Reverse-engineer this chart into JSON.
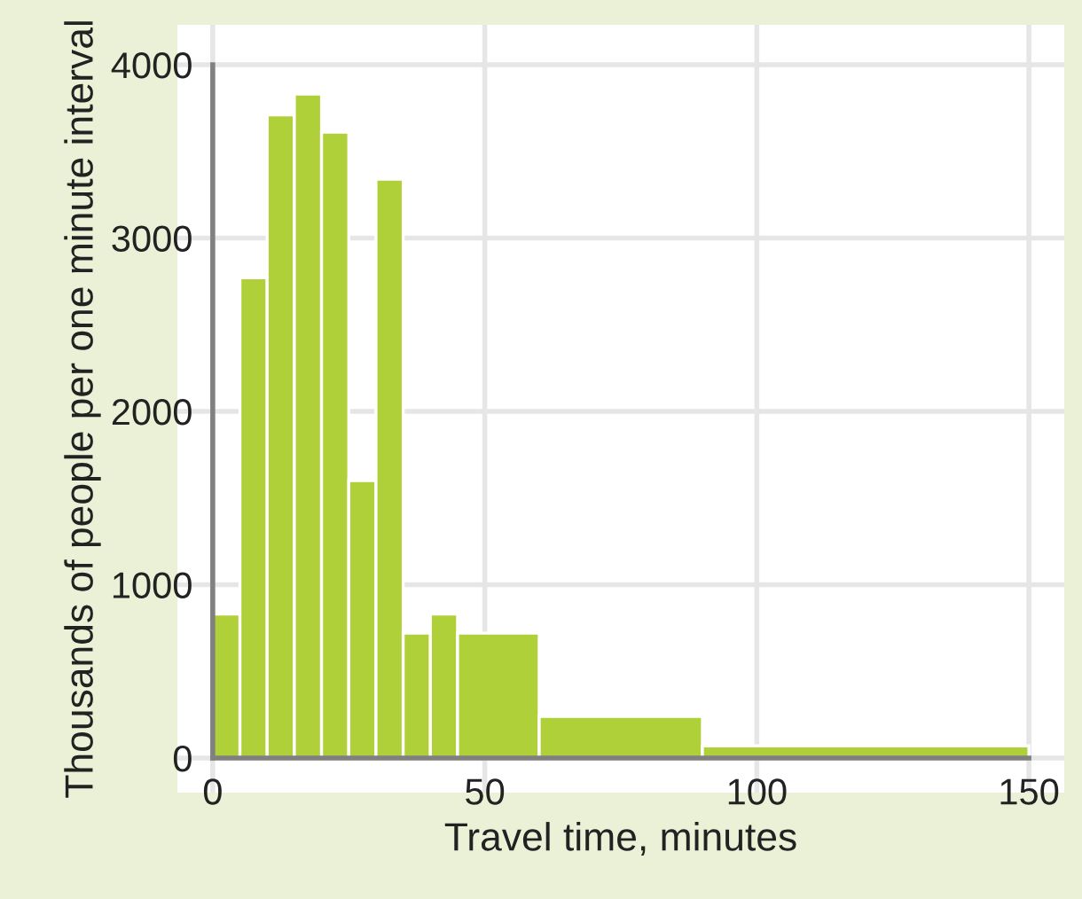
{
  "chart_data": {
    "type": "histogram",
    "xlabel": "Travel time, minutes",
    "ylabel": "Thousands of people per one minute interval",
    "bins": [
      0,
      5,
      10,
      15,
      20,
      25,
      30,
      35,
      40,
      45,
      60,
      90,
      150
    ],
    "values": [
      830,
      2770,
      3710,
      3830,
      3610,
      1600,
      3340,
      720,
      830,
      720,
      240,
      70
    ],
    "color": "#b0d03a",
    "xlim": [
      -6.5,
      156.5
    ],
    "ylim": [
      -200,
      4230
    ],
    "xticks": [
      0,
      50,
      100,
      150
    ],
    "yticks": [
      0,
      1000,
      2000,
      3000,
      4000
    ],
    "grid": true
  }
}
